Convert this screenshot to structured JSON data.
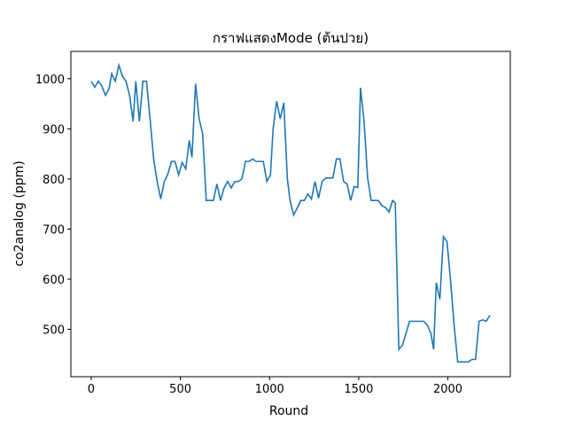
{
  "chart_data": {
    "type": "line",
    "title": "กราฟแสดงMode (ต้นปวย)",
    "x_label": "Round",
    "y_label": "co2analog (ppm)",
    "xlim": [
      -114,
      2350
    ],
    "ylim": [
      405.5,
      1054.5
    ],
    "xticks": [
      0,
      500,
      1000,
      1500,
      2000
    ],
    "yticks": [
      500,
      600,
      700,
      800,
      900,
      1000
    ],
    "series": [
      {
        "name": "co2analog",
        "color": "#1f77b4",
        "x": [
          0,
          20,
          40,
          60,
          80,
          100,
          115,
          135,
          155,
          175,
          195,
          215,
          235,
          250,
          270,
          290,
          310,
          330,
          350,
          370,
          390,
          410,
          430,
          450,
          470,
          490,
          510,
          530,
          550,
          565,
          585,
          605,
          625,
          645,
          665,
          685,
          705,
          725,
          745,
          765,
          785,
          805,
          825,
          845,
          865,
          885,
          905,
          925,
          945,
          965,
          985,
          1005,
          1020,
          1040,
          1060,
          1080,
          1100,
          1115,
          1135,
          1155,
          1175,
          1195,
          1215,
          1235,
          1255,
          1275,
          1295,
          1315,
          1335,
          1355,
          1375,
          1395,
          1415,
          1435,
          1455,
          1475,
          1495,
          1510,
          1530,
          1550,
          1570,
          1590,
          1610,
          1630,
          1650,
          1670,
          1690,
          1705,
          1725,
          1745,
          1765,
          1785,
          1805,
          1825,
          1845,
          1865,
          1885,
          1905,
          1920,
          1935,
          1955,
          1975,
          1995,
          2015,
          2035,
          2055,
          2075,
          2095,
          2115,
          2135,
          2155,
          2175,
          2195,
          2215,
          2235
        ],
        "values": [
          995,
          983,
          995,
          985,
          967,
          980,
          1010,
          995,
          1027,
          1005,
          995,
          967,
          915,
          995,
          915,
          995,
          995,
          920,
          840,
          795,
          760,
          795,
          810,
          835,
          835,
          808,
          833,
          820,
          877,
          843,
          990,
          920,
          890,
          757,
          757,
          757,
          790,
          757,
          782,
          795,
          782,
          795,
          795,
          800,
          835,
          835,
          840,
          835,
          835,
          835,
          795,
          808,
          900,
          955,
          920,
          952,
          800,
          757,
          728,
          742,
          757,
          757,
          770,
          760,
          795,
          762,
          795,
          802,
          802,
          802,
          840,
          840,
          795,
          790,
          757,
          785,
          783,
          982,
          915,
          802,
          757,
          757,
          757,
          747,
          743,
          734,
          757,
          752,
          460,
          468,
          492,
          516,
          516,
          516,
          516,
          516,
          508,
          492,
          460,
          593,
          560,
          685,
          675,
          598,
          508,
          435,
          435,
          435,
          435,
          440,
          440,
          516,
          519,
          516,
          528
        ]
      }
    ]
  }
}
